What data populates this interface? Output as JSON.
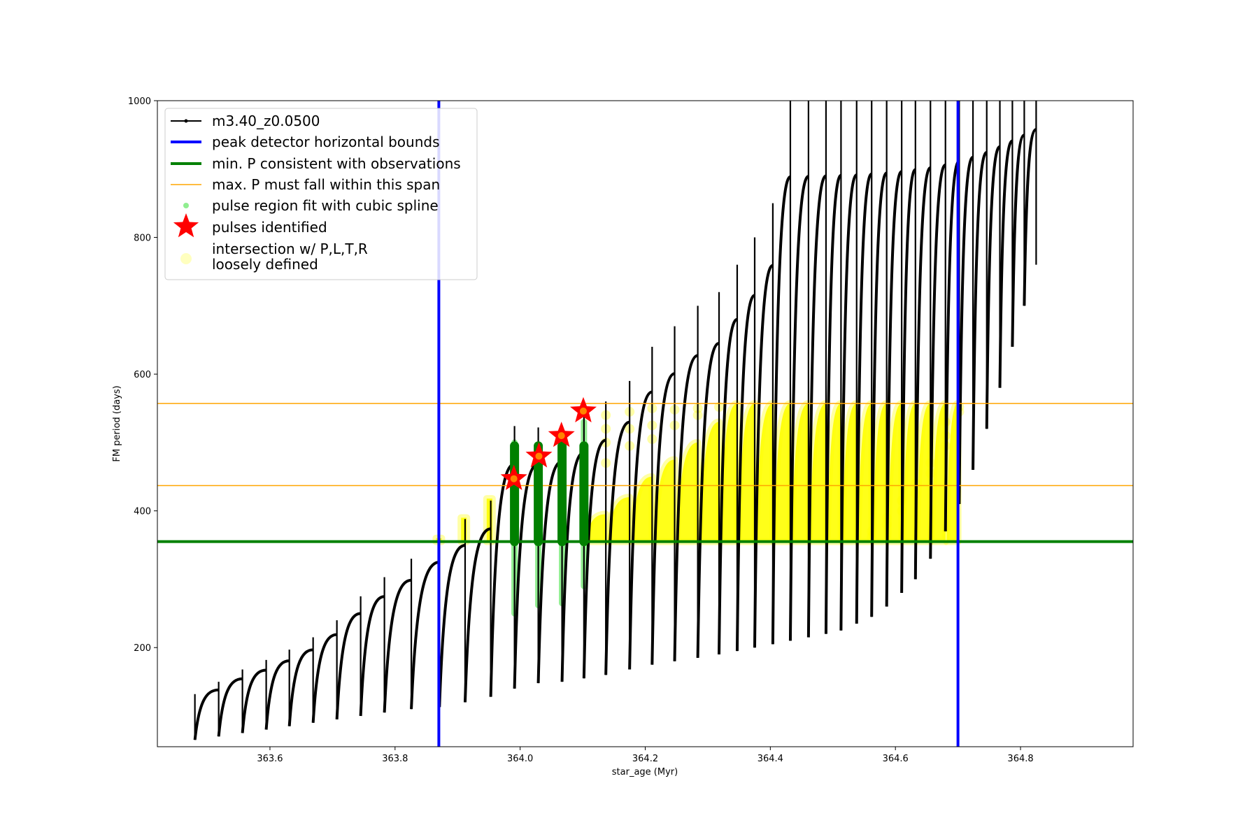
{
  "chart_data": {
    "type": "scatter",
    "title": "",
    "xlabel": "star_age (Myr)",
    "ylabel": "FM period (days)",
    "xlim": [
      363.42,
      364.98
    ],
    "ylim": [
      55,
      1000
    ],
    "xticks": [
      363.6,
      363.8,
      364.0,
      364.2,
      364.4,
      364.6,
      364.8
    ],
    "xtick_labels": [
      "363.6",
      "363.8",
      "364.0",
      "364.2",
      "364.4",
      "364.6",
      "364.8"
    ],
    "yticks": [
      200,
      400,
      600,
      800,
      1000
    ],
    "ytick_labels": [
      "200",
      "400",
      "600",
      "800",
      "1000"
    ],
    "grid": false,
    "legend_position": "top-left",
    "legend": [
      {
        "label": "m3.40_z0.0500",
        "kind": "line-marker",
        "color": "#000000"
      },
      {
        "label": "peak detector horizontal bounds",
        "kind": "line",
        "color": "#0000ff"
      },
      {
        "label": "min. P consistent with observations",
        "kind": "line",
        "color": "#008000"
      },
      {
        "label": "max. P must fall within this span",
        "kind": "line",
        "color": "#ffa500"
      },
      {
        "label": "pulse region fit with cubic spline",
        "kind": "dot",
        "color": "#90ee90"
      },
      {
        "label": "pulses identified",
        "kind": "star",
        "color": "#ff0000"
      },
      {
        "label": "intersection w/ P,L,T,R\nloosely defined",
        "kind": "dot",
        "color": "#ffff00"
      }
    ],
    "vertical_lines": [
      {
        "name": "peak detector horizontal bounds",
        "x": 363.87,
        "color": "#0000ff"
      },
      {
        "name": "peak detector horizontal bounds",
        "x": 364.7,
        "color": "#0000ff"
      }
    ],
    "horizontal_lines": [
      {
        "name": "min. P consistent with observations",
        "y": 355,
        "color": "#008000"
      },
      {
        "name": "max. P must fall within this span",
        "y": 437,
        "color": "#ffa500"
      },
      {
        "name": "max. P must fall within this span",
        "y": 557,
        "color": "#ffa500"
      }
    ],
    "series": [
      {
        "name": "m3.40_z0.0500",
        "color": "#000000",
        "pulses": [
          {
            "x": 363.48,
            "min": 65,
            "peak": 132
          },
          {
            "x": 363.518,
            "min": 70,
            "peak": 150
          },
          {
            "x": 363.556,
            "min": 75,
            "peak": 168
          },
          {
            "x": 363.594,
            "min": 80,
            "peak": 182
          },
          {
            "x": 363.631,
            "min": 85,
            "peak": 197
          },
          {
            "x": 363.669,
            "min": 90,
            "peak": 215
          },
          {
            "x": 363.707,
            "min": 95,
            "peak": 240
          },
          {
            "x": 363.745,
            "min": 100,
            "peak": 275
          },
          {
            "x": 363.783,
            "min": 105,
            "peak": 303
          },
          {
            "x": 363.826,
            "min": 110,
            "peak": 330
          },
          {
            "x": 363.871,
            "min": 113,
            "peak": 360
          },
          {
            "x": 363.912,
            "min": 120,
            "peak": 388
          },
          {
            "x": 363.953,
            "min": 128,
            "peak": 415
          },
          {
            "x": 363.991,
            "min": 140,
            "peak": 524
          },
          {
            "x": 364.029,
            "min": 148,
            "peak": 522
          },
          {
            "x": 364.067,
            "min": 150,
            "peak": 525
          },
          {
            "x": 364.102,
            "min": 155,
            "peak": 540
          },
          {
            "x": 364.137,
            "min": 160,
            "peak": 560
          },
          {
            "x": 364.175,
            "min": 168,
            "peak": 590
          },
          {
            "x": 364.211,
            "min": 175,
            "peak": 640
          },
          {
            "x": 364.247,
            "min": 180,
            "peak": 670
          },
          {
            "x": 364.284,
            "min": 185,
            "peak": 700
          },
          {
            "x": 364.318,
            "min": 190,
            "peak": 720
          },
          {
            "x": 364.347,
            "min": 195,
            "peak": 760
          },
          {
            "x": 364.375,
            "min": 200,
            "peak": 800
          },
          {
            "x": 364.404,
            "min": 205,
            "peak": 850
          },
          {
            "x": 364.432,
            "min": 210,
            "peak": 1000
          },
          {
            "x": 364.461,
            "min": 215,
            "peak": 1000
          },
          {
            "x": 364.489,
            "min": 220,
            "peak": 1000
          },
          {
            "x": 364.513,
            "min": 225,
            "peak": 1000
          },
          {
            "x": 364.538,
            "min": 235,
            "peak": 1000
          },
          {
            "x": 364.562,
            "min": 245,
            "peak": 1000
          },
          {
            "x": 364.586,
            "min": 260,
            "peak": 1000
          },
          {
            "x": 364.61,
            "min": 280,
            "peak": 1000
          },
          {
            "x": 364.632,
            "min": 300,
            "peak": 1000
          },
          {
            "x": 364.656,
            "min": 330,
            "peak": 1000
          },
          {
            "x": 364.68,
            "min": 370,
            "peak": 1000
          },
          {
            "x": 364.702,
            "min": 410,
            "peak": 1000
          },
          {
            "x": 364.724,
            "min": 460,
            "peak": 1000
          },
          {
            "x": 364.746,
            "min": 520,
            "peak": 1000
          },
          {
            "x": 364.767,
            "min": 580,
            "peak": 1000
          },
          {
            "x": 364.787,
            "min": 640,
            "peak": 1000
          },
          {
            "x": 364.806,
            "min": 700,
            "peak": 1000
          },
          {
            "x": 364.825,
            "min": 760,
            "peak": 1000
          }
        ]
      },
      {
        "name": "pulse region fit with cubic spline",
        "color": "#90ee90",
        "segments": [
          {
            "x": 363.991,
            "y0": 250,
            "y1": 500
          },
          {
            "x": 364.029,
            "y0": 262,
            "y1": 495
          },
          {
            "x": 364.067,
            "y0": 265,
            "y1": 500
          },
          {
            "x": 364.102,
            "y0": 290,
            "y1": 530
          }
        ]
      },
      {
        "name": "pulse region (green bars)",
        "color": "#008000",
        "segments": [
          {
            "x": 363.991,
            "y0": 355,
            "y1": 495
          },
          {
            "x": 364.029,
            "y0": 355,
            "y1": 495
          },
          {
            "x": 364.067,
            "y0": 355,
            "y1": 495
          },
          {
            "x": 364.102,
            "y0": 355,
            "y1": 495
          }
        ]
      },
      {
        "name": "pulses identified",
        "color": "#ff0000",
        "points": [
          {
            "x": 363.99,
            "y": 447
          },
          {
            "x": 364.03,
            "y": 480
          },
          {
            "x": 364.066,
            "y": 510
          },
          {
            "x": 364.101,
            "y": 546
          }
        ]
      },
      {
        "name": "intersection w/ P,L,T,R loosely defined",
        "color": "#ffff00",
        "regions": [
          {
            "x0": 363.87,
            "x1": 363.871,
            "y_max": 360
          },
          {
            "x0": 363.91,
            "x1": 363.914,
            "y_max": 390
          },
          {
            "x0": 363.951,
            "x1": 363.955,
            "y_max": 418
          },
          {
            "x0": 364.105,
            "x1": 364.137,
            "y_max": 395
          },
          {
            "x0": 364.14,
            "x1": 364.175,
            "y_max": 420
          },
          {
            "x0": 364.178,
            "x1": 364.211,
            "y_max": 450
          },
          {
            "x0": 364.214,
            "x1": 364.247,
            "y_max": 475
          },
          {
            "x0": 364.25,
            "x1": 364.284,
            "y_max": 500
          },
          {
            "x0": 364.287,
            "x1": 364.318,
            "y_max": 530
          },
          {
            "x0": 364.32,
            "x1": 364.347,
            "y_max": 557
          },
          {
            "x0": 364.349,
            "x1": 364.375,
            "y_max": 557
          },
          {
            "x0": 364.377,
            "x1": 364.404,
            "y_max": 557
          },
          {
            "x0": 364.406,
            "x1": 364.432,
            "y_max": 557
          },
          {
            "x0": 364.434,
            "x1": 364.461,
            "y_max": 557
          },
          {
            "x0": 364.463,
            "x1": 364.489,
            "y_max": 557
          },
          {
            "x0": 364.491,
            "x1": 364.513,
            "y_max": 557
          },
          {
            "x0": 364.515,
            "x1": 364.538,
            "y_max": 557
          },
          {
            "x0": 364.54,
            "x1": 364.562,
            "y_max": 557
          },
          {
            "x0": 364.564,
            "x1": 364.586,
            "y_max": 557
          },
          {
            "x0": 364.588,
            "x1": 364.61,
            "y_max": 557
          },
          {
            "x0": 364.612,
            "x1": 364.632,
            "y_max": 557
          },
          {
            "x0": 364.634,
            "x1": 364.656,
            "y_max": 557
          },
          {
            "x0": 364.658,
            "x1": 364.68,
            "y_max": 557
          },
          {
            "x0": 364.682,
            "x1": 364.7,
            "y_max": 557
          }
        ],
        "upper_points": [
          {
            "x": 364.137,
            "y": 540
          },
          {
            "x": 364.137,
            "y": 520
          },
          {
            "x": 364.137,
            "y": 500
          },
          {
            "x": 364.137,
            "y": 470
          },
          {
            "x": 364.175,
            "y": 545
          },
          {
            "x": 364.175,
            "y": 520
          },
          {
            "x": 364.175,
            "y": 495
          },
          {
            "x": 364.211,
            "y": 550
          },
          {
            "x": 364.211,
            "y": 525
          },
          {
            "x": 364.211,
            "y": 505
          },
          {
            "x": 364.247,
            "y": 548
          },
          {
            "x": 364.247,
            "y": 525
          },
          {
            "x": 364.284,
            "y": 550
          },
          {
            "x": 364.284,
            "y": 540
          },
          {
            "x": 364.318,
            "y": 552
          },
          {
            "x": 364.68,
            "y": 530
          },
          {
            "x": 364.68,
            "y": 510
          },
          {
            "x": 364.68,
            "y": 495
          },
          {
            "x": 364.656,
            "y": 470
          },
          {
            "x": 364.656,
            "y": 455
          },
          {
            "x": 364.632,
            "y": 440
          },
          {
            "x": 364.632,
            "y": 425
          },
          {
            "x": 364.61,
            "y": 415
          },
          {
            "x": 364.61,
            "y": 400
          },
          {
            "x": 364.586,
            "y": 390
          },
          {
            "x": 364.586,
            "y": 380
          },
          {
            "x": 364.562,
            "y": 370
          },
          {
            "x": 364.562,
            "y": 362
          },
          {
            "x": 364.702,
            "y": 552
          },
          {
            "x": 364.702,
            "y": 545
          }
        ]
      }
    ]
  }
}
